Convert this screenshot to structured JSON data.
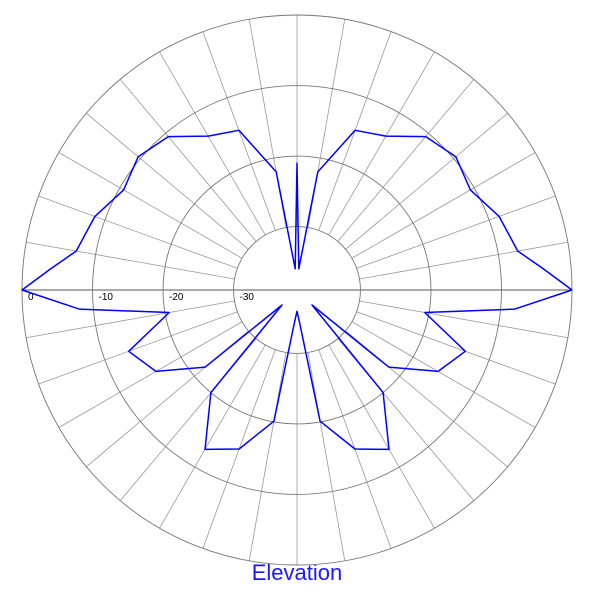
{
  "chart_data": {
    "type": "polar",
    "title": "Elevation",
    "x": [
      0,
      5,
      10,
      20,
      30,
      40,
      50,
      60,
      70,
      80,
      85,
      90,
      95,
      100,
      110,
      120,
      130,
      140,
      150,
      160,
      170,
      175,
      180,
      185,
      190,
      200,
      210,
      220,
      225,
      230,
      240,
      250,
      260,
      265,
      270,
      275,
      280,
      290,
      300,
      310,
      315,
      320,
      330,
      340,
      350,
      355,
      360
    ],
    "series": [
      {
        "color": "#0000ff",
        "values": [
          0,
          -4,
          -7.2,
          -8.5,
          -10.6,
          -9.6,
          -10.6,
          -13.8,
          -14.9,
          -22,
          -36,
          -21,
          -36,
          -22,
          -14.9,
          -13.8,
          -10.6,
          -9.6,
          -10.6,
          -8.5,
          -7.2,
          -4,
          0,
          -8,
          -20.6,
          -13.6,
          -15.9,
          -22,
          -36,
          -20,
          -12.9,
          -15,
          -20.1,
          -34,
          -36,
          -34,
          -20.1,
          -15,
          -12.9,
          -20,
          -36,
          -22,
          -15.9,
          -13.6,
          -20.6,
          -8,
          0
        ]
      }
    ],
    "rlim": [
      -39,
      0
    ],
    "rticks": [
      0,
      -10,
      -20,
      -30
    ],
    "grid": true
  }
}
